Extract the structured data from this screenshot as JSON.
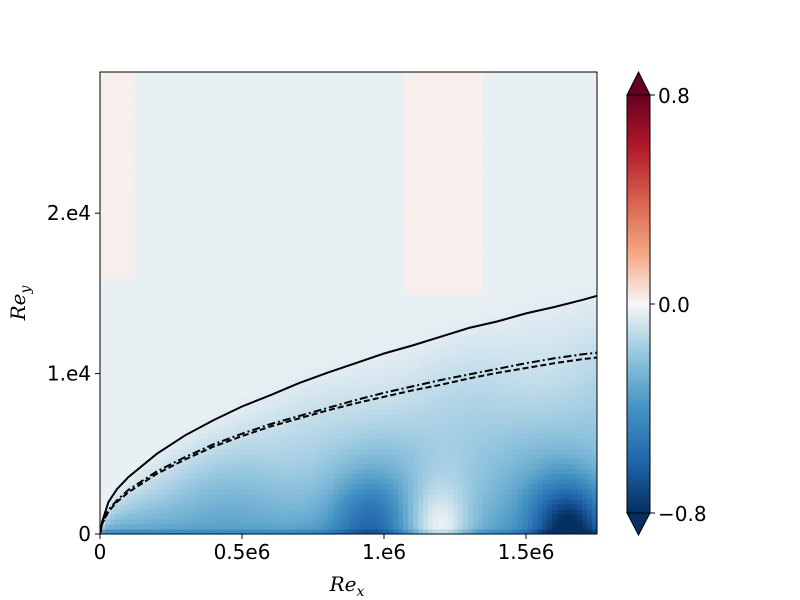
{
  "chart_data": {
    "type": "heatmap",
    "title": "",
    "xlabel": "Re",
    "xlabel_sub": "x",
    "ylabel": "Re",
    "ylabel_sub": "y",
    "xlim": [
      0,
      1750000
    ],
    "ylim": [
      0,
      28800
    ],
    "x_ticks": [
      {
        "value": 0,
        "label": "0"
      },
      {
        "value": 500000,
        "label": "0.5e6"
      },
      {
        "value": 1000000,
        "label": "1.e6"
      },
      {
        "value": 1500000,
        "label": "1.5e6"
      }
    ],
    "y_ticks": [
      {
        "value": 0,
        "label": "0"
      },
      {
        "value": 10000,
        "label": "1.e4"
      },
      {
        "value": 20000,
        "label": "2.e4"
      }
    ],
    "colorbar": {
      "colormap": "RdBu_r",
      "range": [
        -0.8,
        0.8
      ],
      "extend": "both",
      "ticks": [
        {
          "value": 0.8,
          "label": "0.8"
        },
        {
          "value": 0.0,
          "label": "0.0"
        },
        {
          "value": -0.8,
          "label": "−0.8"
        }
      ]
    },
    "field_features": {
      "boundary_layer_edge_value": -0.05,
      "strong_negative_regions": [
        {
          "x": 950000,
          "y": 500,
          "value": -0.55
        },
        {
          "x": 1650000,
          "y": 300,
          "value": -0.8
        }
      ],
      "near_zero_regions": [
        {
          "x": 1200000,
          "y": 300,
          "value": -0.02
        }
      ]
    },
    "series": [
      {
        "style": "solid",
        "color": "#000000",
        "x": [
          8000,
          30000,
          60000,
          100000,
          200000,
          300000,
          400000,
          500000,
          600000,
          700000,
          800000,
          900000,
          1000000,
          1100000,
          1200000,
          1300000,
          1400000,
          1500000,
          1600000,
          1700000,
          1750000
        ],
        "y": [
          800,
          2000,
          2800,
          3550,
          5000,
          6150,
          7100,
          7950,
          8650,
          9400,
          10050,
          10650,
          11250,
          11750,
          12300,
          12850,
          13250,
          13750,
          14150,
          14600,
          14850
        ]
      },
      {
        "style": "dashdot",
        "color": "#000000",
        "x": [
          8000,
          30000,
          60000,
          100000,
          200000,
          300000,
          400000,
          500000,
          600000,
          700000,
          800000,
          900000,
          1000000,
          1100000,
          1200000,
          1300000,
          1400000,
          1500000,
          1600000,
          1700000,
          1750000
        ],
        "y": [
          700,
          1500,
          2100,
          2750,
          3900,
          4800,
          5600,
          6250,
          6850,
          7350,
          7850,
          8350,
          8800,
          9200,
          9600,
          9950,
          10300,
          10650,
          10950,
          11200,
          11300
        ]
      },
      {
        "style": "dashed",
        "color": "#000000",
        "x": [
          8000,
          30000,
          60000,
          100000,
          200000,
          300000,
          400000,
          500000,
          600000,
          700000,
          800000,
          900000,
          1000000,
          1100000,
          1200000,
          1300000,
          1400000,
          1500000,
          1600000,
          1700000,
          1750000
        ],
        "y": [
          650,
          1400,
          2000,
          2600,
          3750,
          4650,
          5450,
          6100,
          6700,
          7200,
          7700,
          8150,
          8550,
          8950,
          9300,
          9700,
          10050,
          10350,
          10650,
          10900,
          11000
        ]
      }
    ]
  }
}
